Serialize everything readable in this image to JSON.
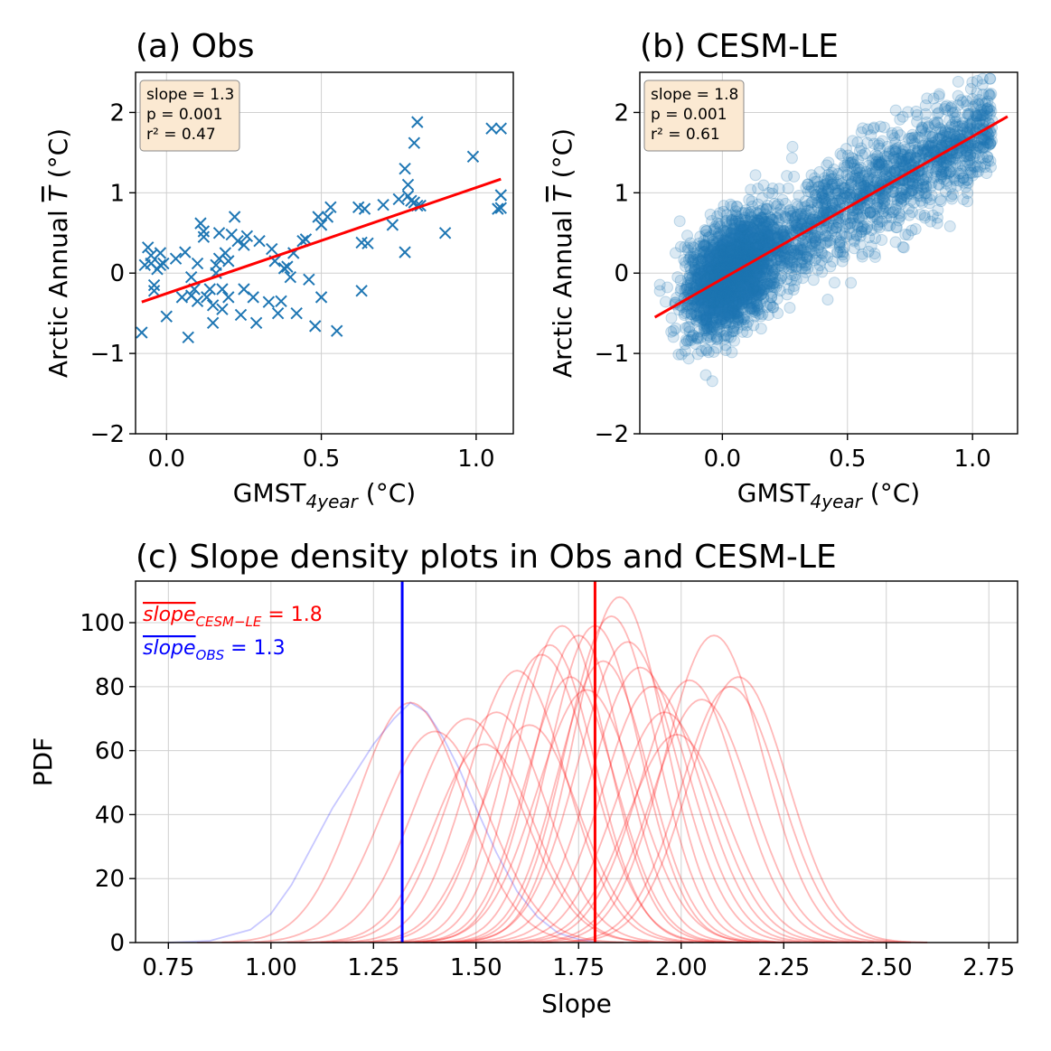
{
  "chart_data": [
    {
      "type": "scatter",
      "title": "(a) Obs",
      "xlabel": "GMST",
      "xlabel_sub": "4year",
      "xlabel_unit": " (°C)",
      "ylabel_pre": "Arctic Annual ",
      "ylabel_var": "T",
      "ylabel_unit": " (°C)",
      "xlim": [
        -0.1,
        1.12
      ],
      "ylim": [
        -2,
        2.5
      ],
      "xticks": [
        0.0,
        0.5,
        1.0
      ],
      "xtick_labels": [
        "0.0",
        "0.5",
        "1.0"
      ],
      "yticks": [
        -2,
        -1,
        0,
        1,
        2
      ],
      "ytick_labels": [
        "−2",
        "−1",
        "0",
        "1",
        "2"
      ],
      "grid": true,
      "marker": "x",
      "color": "#1f77b4",
      "fit_color": "#ff0000",
      "stats": {
        "slope": "slope = 1.3",
        "p": "p = 0.001",
        "r2": "r² = 0.47"
      },
      "fit": {
        "x": [
          -0.08,
          1.08
        ],
        "y": [
          -0.36,
          1.17
        ]
      },
      "x": [
        -0.08,
        -0.07,
        -0.06,
        -0.05,
        -0.05,
        -0.04,
        -0.04,
        -0.03,
        -0.02,
        -0.02,
        -0.01,
        0.0,
        0.03,
        0.05,
        0.06,
        0.07,
        0.08,
        0.08,
        0.09,
        0.1,
        0.1,
        0.11,
        0.12,
        0.12,
        0.13,
        0.14,
        0.15,
        0.15,
        0.16,
        0.16,
        0.17,
        0.17,
        0.18,
        0.18,
        0.19,
        0.2,
        0.2,
        0.21,
        0.22,
        0.23,
        0.24,
        0.25,
        0.25,
        0.26,
        0.28,
        0.29,
        0.3,
        0.33,
        0.34,
        0.35,
        0.36,
        0.37,
        0.38,
        0.39,
        0.4,
        0.41,
        0.42,
        0.44,
        0.45,
        0.46,
        0.48,
        0.49,
        0.5,
        0.5,
        0.52,
        0.53,
        0.55,
        0.62,
        0.63,
        0.63,
        0.64,
        0.65,
        0.7,
        0.73,
        0.75,
        0.77,
        0.77,
        0.78,
        0.78,
        0.79,
        0.8,
        0.8,
        0.81,
        0.81,
        0.82,
        0.9,
        0.99,
        1.05,
        1.07,
        1.08,
        1.08,
        1.08
      ],
      "y": [
        -0.74,
        0.1,
        0.32,
        0.22,
        0.12,
        -0.22,
        -0.15,
        0.05,
        0.1,
        0.25,
        0.12,
        -0.54,
        0.18,
        -0.3,
        0.26,
        -0.8,
        -0.05,
        -0.28,
        -0.2,
        -0.35,
        0.12,
        0.62,
        0.52,
        0.45,
        -0.3,
        -0.2,
        -0.4,
        -0.62,
        0.1,
        0.0,
        0.18,
        0.5,
        -0.45,
        -0.2,
        0.25,
        -0.3,
        0.15,
        0.48,
        0.7,
        0.4,
        -0.52,
        0.35,
        -0.2,
        0.46,
        -0.3,
        -0.62,
        0.4,
        -0.36,
        0.3,
        0.15,
        -0.5,
        -0.35,
        0.06,
        0.08,
        -0.05,
        0.25,
        -0.5,
        0.4,
        0.42,
        -0.08,
        -0.66,
        0.7,
        0.6,
        -0.3,
        0.7,
        0.82,
        -0.72,
        0.82,
        0.38,
        -0.22,
        0.8,
        0.37,
        0.85,
        0.6,
        0.92,
        1.3,
        0.26,
        1.1,
        0.96,
        0.9,
        1.62,
        0.88,
        1.88,
        0.84,
        0.84,
        0.5,
        1.45,
        1.8,
        0.8,
        1.8,
        0.97,
        0.81
      ]
    },
    {
      "type": "scatter",
      "title": "(b) CESM-LE",
      "xlabel": "GMST",
      "xlabel_sub": "4year",
      "xlabel_unit": " (°C)",
      "ylabel_pre": "Arctic Annual ",
      "ylabel_var": "T",
      "ylabel_unit": " (°C)",
      "xlim": [
        -0.33,
        1.18
      ],
      "ylim": [
        -2,
        2.5
      ],
      "xticks": [
        0.0,
        0.5,
        1.0
      ],
      "xtick_labels": [
        "0.0",
        "0.5",
        "1.0"
      ],
      "yticks": [
        -2,
        -1,
        0,
        1,
        2
      ],
      "ytick_labels": [
        "−2",
        "−1",
        "0",
        "1",
        "2"
      ],
      "grid": true,
      "marker": "o",
      "color": "#1f77b4",
      "fit_color": "#ff0000",
      "stats": {
        "slope": "slope = 1.8",
        "p": "p = 0.001",
        "r2": "r² = 0.61"
      },
      "fit": {
        "x": [
          -0.27,
          1.14
        ],
        "y": [
          -0.55,
          1.95
        ]
      },
      "point_count": 3500,
      "scatter_sigma": 0.32
    },
    {
      "type": "line",
      "title": "(c) Slope density plots in Obs and CESM-LE",
      "xlabel": "Slope",
      "ylabel": "PDF",
      "xlim": [
        0.67,
        2.82
      ],
      "ylim": [
        0,
        113
      ],
      "xticks": [
        0.75,
        1.0,
        1.25,
        1.5,
        1.75,
        2.0,
        2.25,
        2.5,
        2.75
      ],
      "xtick_labels": [
        "0.75",
        "1.00",
        "1.25",
        "1.50",
        "1.75",
        "2.00",
        "2.25",
        "2.50",
        "2.75"
      ],
      "yticks": [
        0,
        20,
        40,
        60,
        80,
        100
      ],
      "ytick_labels": [
        "0",
        "20",
        "40",
        "60",
        "80",
        "100"
      ],
      "grid": true,
      "legend": [
        {
          "word": "slope",
          "sub": "CESM−LE",
          "value": " = 1.8",
          "color": "#ff0000"
        },
        {
          "word": "slope",
          "sub": "OBS",
          "value": " = 1.3",
          "color": "#0000ff"
        }
      ],
      "vlines": [
        {
          "x": 1.32,
          "color": "#0000ff"
        },
        {
          "x": 1.79,
          "color": "#ff0000"
        }
      ],
      "obs_curve": {
        "color": "#0000ff",
        "x": [
          0.75,
          0.85,
          0.95,
          1.0,
          1.05,
          1.1,
          1.15,
          1.2,
          1.25,
          1.3,
          1.34,
          1.38,
          1.42,
          1.46,
          1.5,
          1.55,
          1.6,
          1.65,
          1.7,
          1.75,
          1.8
        ],
        "y": [
          0,
          0.5,
          4,
          9,
          18,
          30,
          42,
          52,
          62,
          70,
          75,
          72,
          64,
          54,
          42,
          28,
          16,
          8,
          3,
          1,
          0
        ]
      },
      "cesm_curves": {
        "color": "#ff0000",
        "curves": [
          {
            "mu": 1.34,
            "sigma": 0.13,
            "peak": 75
          },
          {
            "mu": 1.4,
            "sigma": 0.13,
            "peak": 66
          },
          {
            "mu": 1.48,
            "sigma": 0.13,
            "peak": 70
          },
          {
            "mu": 1.52,
            "sigma": 0.12,
            "peak": 62
          },
          {
            "mu": 1.55,
            "sigma": 0.12,
            "peak": 72
          },
          {
            "mu": 1.6,
            "sigma": 0.12,
            "peak": 85
          },
          {
            "mu": 1.63,
            "sigma": 0.12,
            "peak": 68
          },
          {
            "mu": 1.66,
            "sigma": 0.12,
            "peak": 90
          },
          {
            "mu": 1.68,
            "sigma": 0.11,
            "peak": 93
          },
          {
            "mu": 1.71,
            "sigma": 0.11,
            "peak": 99
          },
          {
            "mu": 1.73,
            "sigma": 0.11,
            "peak": 83
          },
          {
            "mu": 1.75,
            "sigma": 0.11,
            "peak": 96
          },
          {
            "mu": 1.77,
            "sigma": 0.12,
            "peak": 79
          },
          {
            "mu": 1.79,
            "sigma": 0.11,
            "peak": 99
          },
          {
            "mu": 1.81,
            "sigma": 0.11,
            "peak": 88
          },
          {
            "mu": 1.83,
            "sigma": 0.11,
            "peak": 102
          },
          {
            "mu": 1.85,
            "sigma": 0.11,
            "peak": 108
          },
          {
            "mu": 1.87,
            "sigma": 0.12,
            "peak": 94
          },
          {
            "mu": 1.9,
            "sigma": 0.12,
            "peak": 86
          },
          {
            "mu": 1.93,
            "sigma": 0.12,
            "peak": 80
          },
          {
            "mu": 1.96,
            "sigma": 0.12,
            "peak": 72
          },
          {
            "mu": 1.99,
            "sigma": 0.12,
            "peak": 65
          },
          {
            "mu": 2.02,
            "sigma": 0.12,
            "peak": 82
          },
          {
            "mu": 2.05,
            "sigma": 0.12,
            "peak": 76
          },
          {
            "mu": 2.08,
            "sigma": 0.12,
            "peak": 96
          },
          {
            "mu": 2.12,
            "sigma": 0.12,
            "peak": 80
          },
          {
            "mu": 2.14,
            "sigma": 0.12,
            "peak": 83
          }
        ]
      }
    }
  ]
}
